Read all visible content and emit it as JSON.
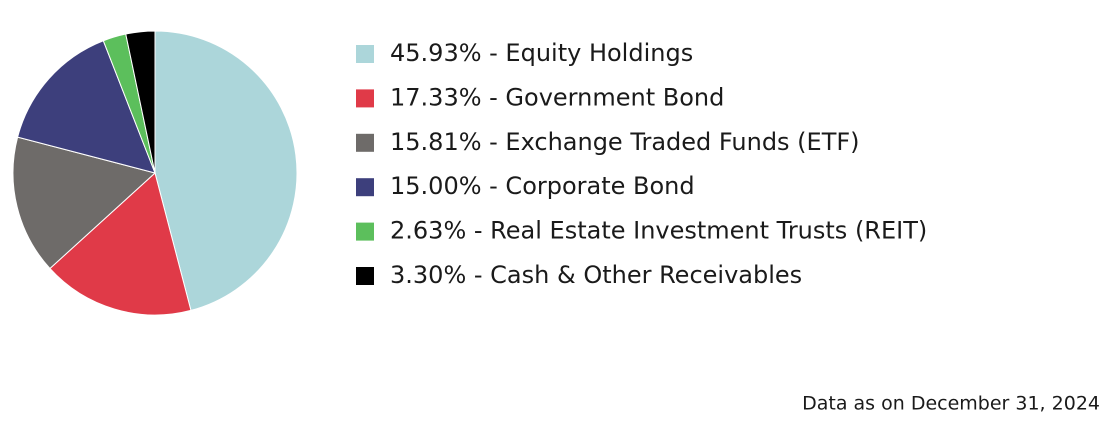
{
  "chart_data": {
    "type": "pie",
    "categories": [
      "45.93% - Equity Holdings",
      "17.33% - Government Bond",
      "15.81% - Exchange Traded Funds (ETF)",
      "15.00% - Corporate Bond",
      "2.63% - Real Estate Investment Trusts (REIT)",
      "3.30% - Cash & Other Receivables"
    ],
    "values": [
      45.93,
      17.33,
      15.81,
      15.0,
      2.63,
      3.3
    ],
    "colors": [
      "#acd6da",
      "#e03a48",
      "#6e6b69",
      "#3d3f7c",
      "#5cbf5c",
      "#000000"
    ],
    "note": "Data as on December 31, 2024"
  }
}
